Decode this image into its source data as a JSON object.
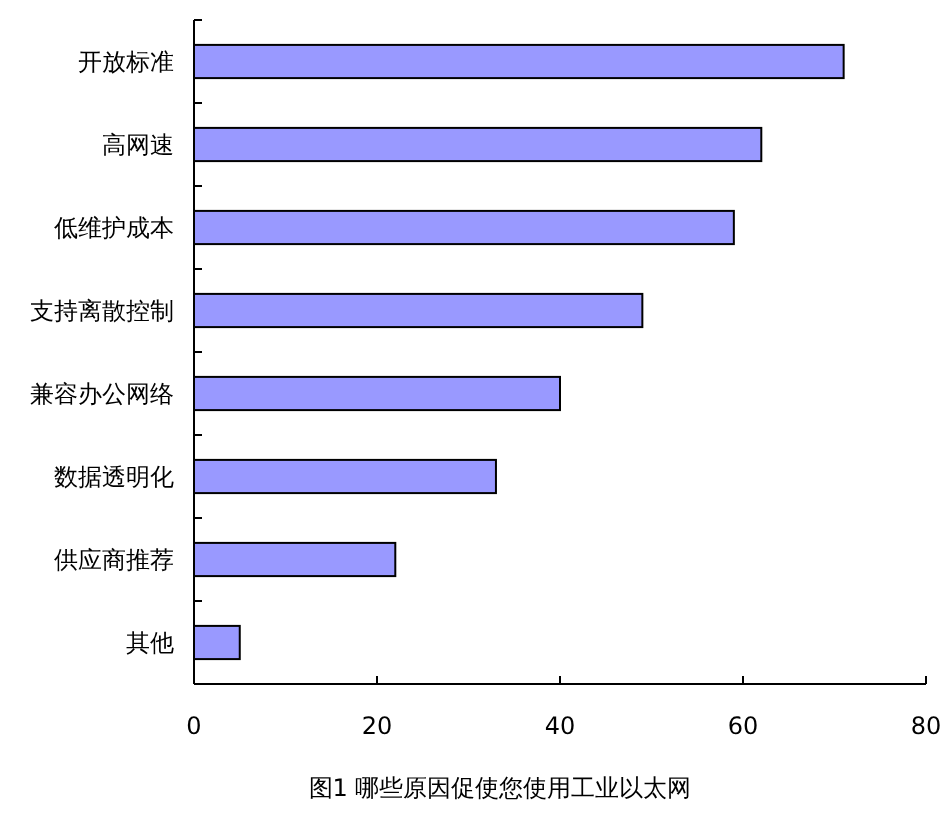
{
  "chart_data": {
    "type": "bar",
    "orientation": "horizontal",
    "title": "图1 哪些原因促使您使用工业以太网",
    "categories": [
      "开放标准",
      "高网速",
      "低维护成本",
      "支持离散控制",
      "兼容办公网络",
      "数据透明化",
      "供应商推荐",
      "其他"
    ],
    "values": [
      71,
      62,
      59,
      49,
      40,
      33,
      22,
      5
    ],
    "color": "#9999ff",
    "xlim": [
      0,
      80
    ],
    "xticks": [
      0,
      20,
      40,
      60,
      80
    ],
    "grid": false
  }
}
